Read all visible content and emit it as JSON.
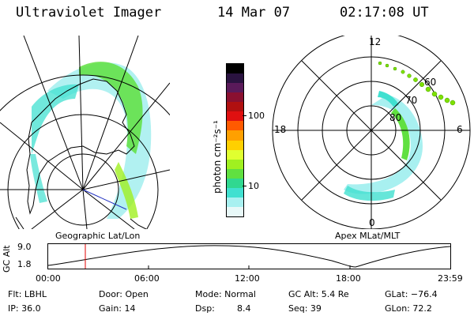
{
  "header": {
    "title": "Ultraviolet Imager",
    "date": "14 Mar 07",
    "time": "02:17:08 UT"
  },
  "geographic_panel": {
    "caption": "Geographic Lat/Lon"
  },
  "apex_panel": {
    "caption": "Apex MLat/MLT",
    "mlt_labels": [
      "12",
      "18",
      "6",
      "0"
    ],
    "lat_labels": [
      "60",
      "70",
      "80"
    ]
  },
  "colorbar": {
    "unit_label": "photon cm⁻²s⁻¹",
    "tick_labels": [
      "100",
      "10"
    ],
    "colors": [
      "#000000",
      "#2a1340",
      "#5a1a5a",
      "#8a1030",
      "#b01010",
      "#e01010",
      "#ff5a00",
      "#ffa000",
      "#ffd000",
      "#e0ff30",
      "#a0f020",
      "#60e040",
      "#30d890",
      "#40e0d0",
      "#a8f0f0",
      "#e8f8f8"
    ]
  },
  "altitude_plot": {
    "ylabel": "GC Alt",
    "ymax_label": "9.0",
    "ymin_label": "1.8",
    "time_labels": [
      "00:00",
      "06:00",
      "12:00",
      "18:00",
      "23:59"
    ],
    "marker_color": "#e00000"
  },
  "status": {
    "row1": [
      "Flt: LBHL",
      "Door: Open",
      "Mode: Normal",
      "GC Alt: 5.4 Re",
      "GLat: −76.4"
    ],
    "row2": [
      "IP: 36.0",
      "Gain: 14",
      "Dsp:",
      "8.4",
      "Seq: 39",
      "GLon: 72.2"
    ]
  }
}
